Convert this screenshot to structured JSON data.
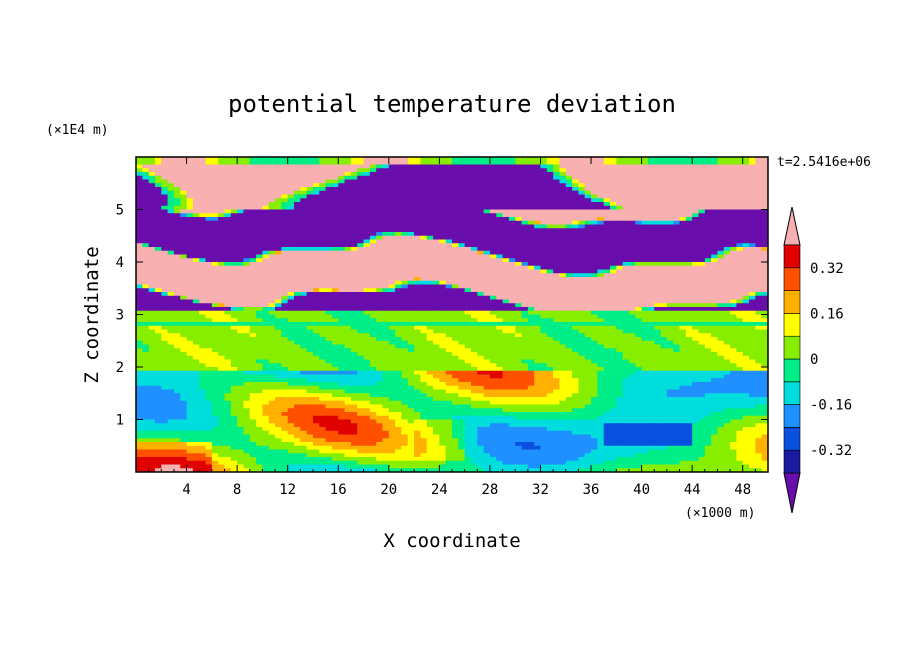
{
  "chart_data": {
    "type": "heatmap",
    "title": "potential temperature deviation",
    "xlabel": "X coordinate",
    "ylabel": "Z coordinate",
    "x_unit": "(×1000 m)",
    "y_unit": "(×1E4 m)",
    "time_label": "t=2.5416e+06",
    "xlim": [
      0,
      50
    ],
    "ylim": [
      0,
      6
    ],
    "x_ticks": [
      4,
      8,
      12,
      16,
      20,
      24,
      28,
      32,
      36,
      40,
      44,
      48
    ],
    "y_ticks": [
      1,
      2,
      3,
      4,
      5
    ],
    "x_tick_labels": [
      "4",
      "8",
      "12",
      "16",
      "20",
      "24",
      "28",
      "32",
      "36",
      "40",
      "44",
      "48"
    ],
    "y_tick_labels": [
      "1",
      "2",
      "3",
      "4",
      "5"
    ],
    "colorbar": {
      "levels": [
        -0.4,
        -0.32,
        -0.24,
        -0.16,
        -0.08,
        0,
        0.08,
        0.16,
        0.24,
        0.32,
        0.4
      ],
      "colors": [
        "#6a0dad",
        "#1a1aa0",
        "#0a50e0",
        "#1e90ff",
        "#00dddd",
        "#00ee88",
        "#88ee00",
        "#ffff00",
        "#ffb000",
        "#ff5000",
        "#e00000",
        "#f8b0b0"
      ],
      "tick_labels": [
        "-0.32",
        "-0.16",
        "0",
        "0.16",
        "0.32"
      ],
      "tick_values": [
        -0.32,
        -0.16,
        0,
        0.16,
        0.32
      ],
      "extend": "both"
    },
    "bands": [
      {
        "z": [
          5.0,
          6.0
        ],
        "value": -0.45,
        "note": "purple/pink alternating"
      },
      {
        "z": [
          3.1,
          5.0
        ],
        "value": 0.45,
        "note": "pink and purple layers"
      },
      {
        "z": [
          1.9,
          3.1
        ],
        "value": 0.02
      },
      {
        "z": [
          0,
          1.9
        ],
        "value": 0.05
      }
    ]
  }
}
